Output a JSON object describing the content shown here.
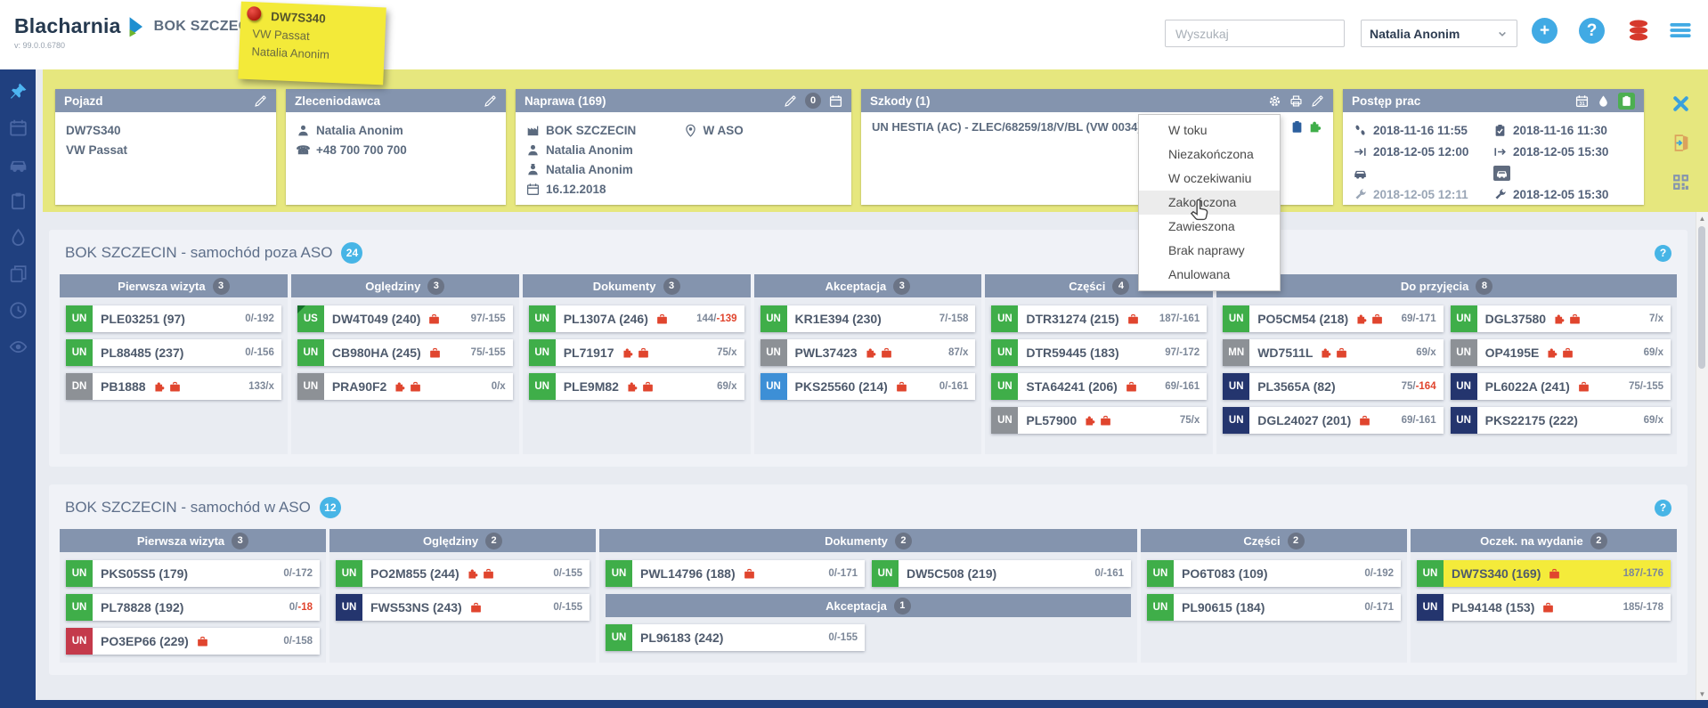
{
  "topbar": {
    "logo": "Blacharnia",
    "site": "BOK SZCZECIN",
    "version": "v: 99.0.0.6780",
    "search_placeholder": "Wyszukaj",
    "user_name": "Natalia Anonim",
    "note": {
      "title": "DW7S340",
      "line1": "VW Passat",
      "line2": "Natalia Anonim"
    }
  },
  "sidebar": {
    "items": [
      {
        "icon": "pushpin",
        "active": true
      },
      {
        "icon": "calendar",
        "active": false
      },
      {
        "icon": "car",
        "active": false
      },
      {
        "icon": "clipboard",
        "active": false
      },
      {
        "icon": "drop",
        "active": false
      },
      {
        "icon": "copy",
        "active": false
      },
      {
        "icon": "clock",
        "active": false
      },
      {
        "icon": "eye",
        "active": false
      }
    ]
  },
  "infobar": {
    "pojazd": {
      "title": "Pojazd",
      "line1": "DW7S340",
      "line2": "VW Passat"
    },
    "zleceniodawca": {
      "title": "Zleceniodawca",
      "name": "Natalia Anonim",
      "phone": "+48 700 700 700"
    },
    "naprawa": {
      "title": "Naprawa (169)",
      "badge": "0",
      "rows": [
        {
          "icon": "factory",
          "text": "BOK SZCZECIN"
        },
        {
          "icon": "person",
          "text": "Natalia Anonim"
        },
        {
          "icon": "worker",
          "text": "Natalia Anonim"
        },
        {
          "icon": "calendar",
          "text": "16.12.2018"
        }
      ],
      "location": "W ASO"
    },
    "szkody": {
      "title": "Szkody (1)",
      "claim": "UN HESTIA (AC) - ZLEC/68259/18/V/BL (VW 0034) - O"
    },
    "postep": {
      "title": "Postęp prac",
      "rows": [
        {
          "li": "steps",
          "lt": "2018-11-16 11:55",
          "ri": "clipcheck",
          "rt": "2018-11-16 11:30"
        },
        {
          "li": "arrowin",
          "lt": "2018-12-05 12:00",
          "ri": "arrowout",
          "rt": "2018-12-05 15:30"
        },
        {
          "li": "car",
          "lt": "",
          "ri": "car",
          "ri_badge": true,
          "rt": ""
        },
        {
          "li": "wrench",
          "lt": "2018-12-05 12:11",
          "lt_muted": true,
          "ri": "wrench",
          "rt": "2018-12-05 15:30"
        }
      ]
    }
  },
  "context_menu": {
    "items": [
      "W toku",
      "Niezakończona",
      "W oczekiwaniu",
      "Zakończona",
      "Zawieszona",
      "Brak naprawy",
      "Anulowana"
    ],
    "hovered": "Zakończona"
  },
  "colors": {
    "tags": {
      "green": "#3fae49",
      "gray": "#8d9196",
      "navy": "#24356e",
      "blue": "#3d8fd6",
      "red": "#c43a4b"
    },
    "accent_blue": "#41aae4",
    "icon_red": "#e0452e",
    "highlight_yellow": "#f4eb3a",
    "infobar_yellow": "#e6e77e",
    "sidebar_navy": "#20407f"
  },
  "boards": [
    {
      "title": "BOK SZCZECIN - samochód poza ASO",
      "badge": "24",
      "help": "?",
      "columns": [
        {
          "label": "Pierwsza wizyta",
          "count": "3",
          "cards": [
            {
              "tag": "UN",
              "color": "green",
              "plate": "PLE03251 (97)",
              "icons": [],
              "value": "0/-192"
            },
            {
              "tag": "UN",
              "color": "green",
              "plate": "PL88485 (237)",
              "icons": [],
              "value": "0/-156"
            },
            {
              "tag": "DN",
              "color": "gray",
              "plate": "PB1888",
              "icons": [
                "puzzle",
                "case"
              ],
              "value": "133/x"
            }
          ]
        },
        {
          "label": "Oględziny",
          "count": "3",
          "cards": [
            {
              "tag": "US",
              "color": "green",
              "corner": true,
              "plate": "DW4T049 (240)",
              "icons": [
                "case"
              ],
              "value": "97/-155"
            },
            {
              "tag": "UN",
              "color": "green",
              "plate": "CB980HA (245)",
              "icons": [
                "case"
              ],
              "value": "75/-155"
            },
            {
              "tag": "UN",
              "color": "gray",
              "plate": "PRA90F2",
              "icons": [
                "puzzle",
                "case"
              ],
              "value": "0/x"
            }
          ]
        },
        {
          "label": "Dokumenty",
          "count": "3",
          "cards": [
            {
              "tag": "UN",
              "color": "green",
              "plate": "PL1307A (246)",
              "icons": [
                "case"
              ],
              "value": "144/-139",
              "red": "-139"
            },
            {
              "tag": "UN",
              "color": "green",
              "plate": "PL71917",
              "icons": [
                "puzzle",
                "case"
              ],
              "value": "75/x"
            },
            {
              "tag": "UN",
              "color": "green",
              "plate": "PLE9M82",
              "icons": [
                "puzzle",
                "case"
              ],
              "value": "69/x"
            }
          ]
        },
        {
          "label": "Akceptacja",
          "count": "3",
          "cards": [
            {
              "tag": "UN",
              "color": "green",
              "plate": "KR1E394 (230)",
              "icons": [],
              "value": "7/-158"
            },
            {
              "tag": "UN",
              "color": "gray",
              "plate": "PWL37423",
              "icons": [
                "puzzle",
                "case"
              ],
              "value": "87/x"
            },
            {
              "tag": "UN",
              "color": "blue",
              "plate": "PKS25560 (214)",
              "icons": [
                "case"
              ],
              "value": "0/-161"
            }
          ]
        },
        {
          "label": "Części",
          "count": "4",
          "cards": [
            {
              "tag": "UN",
              "color": "green",
              "plate": "DTR31274 (215)",
              "icons": [
                "case"
              ],
              "value": "187/-161"
            },
            {
              "tag": "UN",
              "color": "green",
              "plate": "DTR59445 (183)",
              "icons": [],
              "value": "97/-172"
            },
            {
              "tag": "UN",
              "color": "green",
              "plate": "STA64241 (206)",
              "icons": [
                "case"
              ],
              "value": "69/-161"
            },
            {
              "tag": "UN",
              "color": "gray",
              "plate": "PL57900",
              "icons": [
                "puzzle",
                "case"
              ],
              "value": "75/x"
            }
          ]
        },
        {
          "label": "Do przyjęcia",
          "count": "8",
          "span": 2,
          "grid": true,
          "cards": [
            {
              "tag": "UN",
              "color": "green",
              "plate": "PO5CM54 (218)",
              "icons": [
                "puzzle",
                "case"
              ],
              "value": "69/-171"
            },
            {
              "tag": "UN",
              "color": "green",
              "plate": "DGL37580",
              "icons": [
                "puzzle",
                "case"
              ],
              "value": "7/x"
            },
            {
              "tag": "MN",
              "color": "gray",
              "plate": "WD7511L",
              "icons": [
                "puzzle",
                "case"
              ],
              "value": "69/x"
            },
            {
              "tag": "UN",
              "color": "gray",
              "plate": "OP4195E",
              "icons": [
                "puzzle",
                "case"
              ],
              "value": "69/x"
            },
            {
              "tag": "UN",
              "color": "navy",
              "plate": "PL3565A (82)",
              "icons": [],
              "value": "75/-164",
              "red": "-164"
            },
            {
              "tag": "UN",
              "color": "navy",
              "plate": "PL6022A (241)",
              "icons": [
                "case"
              ],
              "value": "75/-155"
            },
            {
              "tag": "UN",
              "color": "navy",
              "plate": "DGL24027 (201)",
              "icons": [
                "case"
              ],
              "value": "69/-161"
            },
            {
              "tag": "UN",
              "color": "navy",
              "plate": "PKS22175 (222)",
              "icons": [],
              "value": "69/x"
            }
          ]
        }
      ]
    },
    {
      "title": "BOK SZCZECIN - samochód w ASO",
      "badge": "12",
      "help": "?",
      "columns": [
        {
          "label": "Pierwsza wizyta",
          "count": "3",
          "cards": [
            {
              "tag": "UN",
              "color": "green",
              "plate": "PKS05S5 (179)",
              "icons": [],
              "value": "0/-172"
            },
            {
              "tag": "UN",
              "color": "green",
              "plate": "PL78828 (192)",
              "icons": [],
              "value": "0/-18",
              "red": "-18"
            },
            {
              "tag": "UN",
              "color": "red",
              "plate": "PO3EP66 (229)",
              "icons": [
                "case"
              ],
              "value": "0/-158"
            }
          ]
        },
        {
          "label": "Oględziny",
          "count": "2",
          "cards": [
            {
              "tag": "UN",
              "color": "green",
              "plate": "PO2M855 (244)",
              "icons": [
                "puzzle",
                "case"
              ],
              "value": "0/-155"
            },
            {
              "tag": "UN",
              "color": "navy",
              "plate": "FWS53NS (243)",
              "icons": [
                "case"
              ],
              "value": "0/-155"
            }
          ]
        },
        {
          "label": "Dokumenty",
          "count": "2",
          "span": 2,
          "grid": true,
          "cards": [
            {
              "tag": "UN",
              "color": "green",
              "plate": "PWL14796 (188)",
              "icons": [
                "case"
              ],
              "value": "0/-171"
            },
            {
              "tag": "UN",
              "color": "green",
              "plate": "DW5C508 (219)",
              "icons": [],
              "value": "0/-161"
            }
          ],
          "subheader": {
            "label": "Akceptacja",
            "count": "1"
          },
          "cards2": [
            {
              "tag": "UN",
              "color": "green",
              "plate": "PL96183 (242)",
              "icons": [],
              "value": "0/-155"
            }
          ]
        },
        {
          "label": "Części",
          "count": "2",
          "cards": [
            {
              "tag": "UN",
              "color": "green",
              "plate": "PO6T083 (109)",
              "icons": [],
              "value": "0/-192"
            },
            {
              "tag": "UN",
              "color": "green",
              "plate": "PL90615 (184)",
              "icons": [],
              "value": "0/-171"
            }
          ]
        },
        {
          "label": "Oczek. na wydanie",
          "count": "2",
          "cards": [
            {
              "tag": "UN",
              "color": "green",
              "plate": "DW7S340 (169)",
              "icons": [
                "case"
              ],
              "value": "187/-176",
              "highlight": true
            },
            {
              "tag": "UN",
              "color": "navy",
              "plate": "PL94148 (153)",
              "icons": [
                "case"
              ],
              "value": "185/-178"
            }
          ]
        }
      ]
    }
  ]
}
